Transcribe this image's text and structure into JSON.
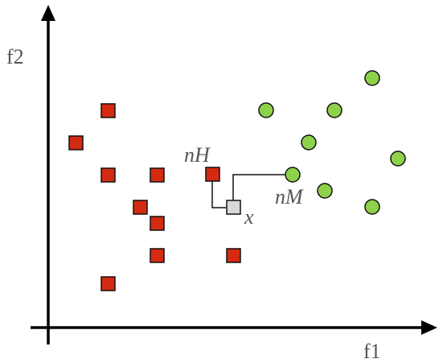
{
  "axes": {
    "x_label": "f1",
    "y_label": "f2"
  },
  "labels": {
    "nearest_hit": "nH",
    "nearest_miss": "nM",
    "query": "x"
  }
}
